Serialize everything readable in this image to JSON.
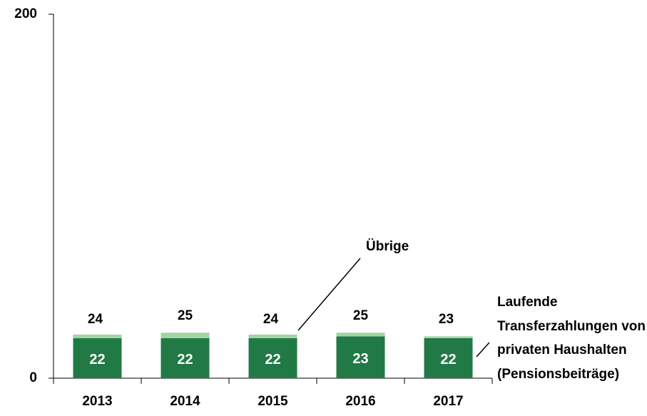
{
  "chart_data": {
    "type": "stacked_bar",
    "categories": [
      "2013",
      "2014",
      "2015",
      "2016",
      "2017"
    ],
    "series": [
      {
        "name": "Laufende Transferzahlungen von privaten Haushalten (Pensionsbeiträge)",
        "color": "#217a45",
        "values": [
          22,
          22,
          22,
          23,
          22
        ]
      },
      {
        "name": "Übrige",
        "color": "#a3d4a3",
        "values": [
          2,
          3,
          2,
          2,
          1
        ]
      }
    ],
    "totals": [
      24,
      25,
      24,
      25,
      23
    ],
    "ylim": [
      0,
      200
    ],
    "yticks": [
      0,
      200
    ],
    "grid": false
  }
}
